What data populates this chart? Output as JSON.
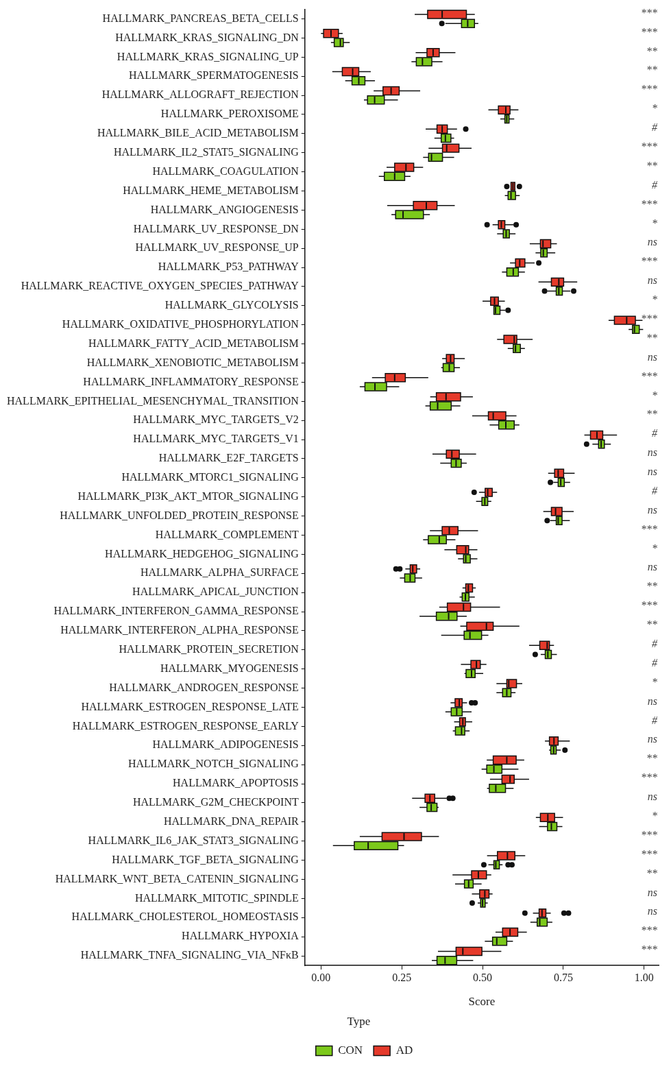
{
  "chart_data": {
    "type": "box",
    "orientation": "horizontal",
    "xlabel": "Score",
    "legend_title": "Type",
    "legend": "bottom left",
    "grid": false,
    "xlim": [
      -0.05,
      1.045
    ],
    "xticks": [
      {
        "value": 0,
        "label": "0.00"
      },
      {
        "value": 0.25,
        "label": "0.25"
      },
      {
        "value": 0.5,
        "label": "0.50"
      },
      {
        "value": 0.75,
        "label": "0.75"
      },
      {
        "value": 1,
        "label": "1.00"
      }
    ],
    "categories": [
      "HALLMARK_PANCREAS_BETA_CELLS",
      "HALLMARK_KRAS_SIGNALING_DN",
      "HALLMARK_KRAS_SIGNALING_UP",
      "HALLMARK_SPERMATOGENESIS",
      "HALLMARK_ALLOGRAFT_REJECTION",
      "HALLMARK_PEROXISOME",
      "HALLMARK_BILE_ACID_METABOLISM",
      "HALLMARK_IL2_STAT5_SIGNALING",
      "HALLMARK_COAGULATION",
      "HALLMARK_HEME_METABOLISM",
      "HALLMARK_ANGIOGENESIS",
      "HALLMARK_UV_RESPONSE_DN",
      "HALLMARK_UV_RESPONSE_UP",
      "HALLMARK_P53_PATHWAY",
      "HALLMARK_REACTIVE_OXYGEN_SPECIES_PATHWAY",
      "HALLMARK_GLYCOLYSIS",
      "HALLMARK_OXIDATIVE_PHOSPHORYLATION",
      "HALLMARK_FATTY_ACID_METABOLISM",
      "HALLMARK_XENOBIOTIC_METABOLISM",
      "HALLMARK_INFLAMMATORY_RESPONSE",
      "HALLMARK_EPITHELIAL_MESENCHYMAL_TRANSITION",
      "HALLMARK_MYC_TARGETS_V2",
      "HALLMARK_MYC_TARGETS_V1",
      "HALLMARK_E2F_TARGETS",
      "HALLMARK_MTORC1_SIGNALING",
      "HALLMARK_PI3K_AKT_MTOR_SIGNALING",
      "HALLMARK_UNFOLDED_PROTEIN_RESPONSE",
      "HALLMARK_COMPLEMENT",
      "HALLMARK_HEDGEHOG_SIGNALING",
      "HALLMARK_ALPHA_SURFACE",
      "HALLMARK_APICAL_JUNCTION",
      "HALLMARK_INTERFERON_GAMMA_RESPONSE",
      "HALLMARK_INTERFERON_ALPHA_RESPONSE",
      "HALLMARK_PROTEIN_SECRETION",
      "HALLMARK_MYOGENESIS",
      "HALLMARK_ANDROGEN_RESPONSE",
      "HALLMARK_ESTROGEN_RESPONSE_LATE",
      "HALLMARK_ESTROGEN_RESPONSE_EARLY",
      "HALLMARK_ADIPOGENESIS",
      "HALLMARK_NOTCH_SIGNALING",
      "HALLMARK_APOPTOSIS",
      "HALLMARK_G2M_CHECKPOINT",
      "HALLMARK_DNA_REPAIR",
      "HALLMARK_IL6_JAK_STAT3_SIGNALING",
      "HALLMARK_TGF_BETA_SIGNALING",
      "HALLMARK_WNT_BETA_CATENIN_SIGNALING",
      "HALLMARK_MITOTIC_SPINDLE",
      "HALLMARK_CHOLESTEROL_HOMEOSTASIS",
      "HALLMARK_HYPOXIA",
      "HALLMARK_TNFA_SIGNALING_VIA_NFκB"
    ],
    "series": [
      {
        "name": "CON",
        "color": "#7cc91b",
        "boxes": [
          {
            "low": 0.385,
            "q1": 0.435,
            "median": 0.454,
            "q3": 0.475,
            "high": 0.487,
            "outliers": [
              0.374
            ]
          },
          {
            "low": 0.031,
            "q1": 0.041,
            "median": 0.06,
            "q3": 0.069,
            "high": 0.089
          },
          {
            "low": 0.28,
            "q1": 0.295,
            "median": 0.314,
            "q3": 0.343,
            "high": 0.376
          },
          {
            "low": 0.075,
            "q1": 0.096,
            "median": 0.117,
            "q3": 0.136,
            "high": 0.167
          },
          {
            "low": 0.133,
            "q1": 0.144,
            "median": 0.166,
            "q3": 0.196,
            "high": 0.238
          },
          {
            "low": 0.555,
            "q1": 0.569,
            "median": 0.575,
            "q3": 0.582,
            "high": 0.598
          },
          {
            "low": 0.351,
            "q1": 0.372,
            "median": 0.385,
            "q3": 0.402,
            "high": 0.412
          },
          {
            "low": 0.316,
            "q1": 0.333,
            "median": 0.342,
            "q3": 0.376,
            "high": 0.412
          },
          {
            "low": 0.179,
            "q1": 0.196,
            "median": 0.228,
            "q3": 0.259,
            "high": 0.277
          },
          {
            "low": 0.569,
            "q1": 0.579,
            "median": 0.588,
            "q3": 0.602,
            "high": 0.615
          },
          {
            "low": 0.218,
            "q1": 0.231,
            "median": 0.254,
            "q3": 0.317,
            "high": 0.337
          },
          {
            "low": 0.545,
            "q1": 0.564,
            "median": 0.573,
            "q3": 0.583,
            "high": 0.602
          },
          {
            "low": 0.664,
            "q1": 0.68,
            "median": 0.688,
            "q3": 0.7,
            "high": 0.725
          },
          {
            "low": 0.56,
            "q1": 0.575,
            "median": 0.595,
            "q3": 0.611,
            "high": 0.631
          },
          {
            "low": 0.7,
            "q1": 0.728,
            "median": 0.736,
            "q3": 0.747,
            "high": 0.772,
            "outliers": [
              0.692,
              0.782
            ]
          },
          {
            "low": 0.534,
            "q1": 0.535,
            "median": 0.54,
            "q3": 0.554,
            "high": 0.571,
            "outliers": [
              0.579
            ]
          },
          {
            "low": 0.952,
            "q1": 0.964,
            "median": 0.97,
            "q3": 0.985,
            "high": 0.997
          },
          {
            "low": 0.578,
            "q1": 0.595,
            "median": 0.602,
            "q3": 0.617,
            "high": 0.631
          },
          {
            "low": 0.372,
            "q1": 0.378,
            "median": 0.397,
            "q3": 0.412,
            "high": 0.43
          },
          {
            "low": 0.12,
            "q1": 0.136,
            "median": 0.167,
            "q3": 0.203,
            "high": 0.242
          },
          {
            "low": 0.323,
            "q1": 0.338,
            "median": 0.361,
            "q3": 0.403,
            "high": 0.431
          },
          {
            "low": 0.522,
            "q1": 0.55,
            "median": 0.572,
            "q3": 0.598,
            "high": 0.614
          },
          {
            "low": 0.84,
            "q1": 0.859,
            "median": 0.867,
            "q3": 0.877,
            "high": 0.897,
            "outliers": [
              0.822
            ]
          },
          {
            "low": 0.369,
            "q1": 0.403,
            "median": 0.418,
            "q3": 0.434,
            "high": 0.451
          },
          {
            "low": 0.719,
            "q1": 0.734,
            "median": 0.742,
            "q3": 0.753,
            "high": 0.771,
            "outliers": [
              0.71
            ]
          },
          {
            "low": 0.48,
            "q1": 0.498,
            "median": 0.507,
            "q3": 0.516,
            "high": 0.527
          },
          {
            "low": 0.709,
            "q1": 0.728,
            "median": 0.734,
            "q3": 0.746,
            "high": 0.77,
            "outliers": [
              0.7
            ]
          },
          {
            "low": 0.316,
            "q1": 0.332,
            "median": 0.366,
            "q3": 0.388,
            "high": 0.416
          },
          {
            "low": 0.424,
            "q1": 0.441,
            "median": 0.448,
            "q3": 0.462,
            "high": 0.484
          },
          {
            "low": 0.244,
            "q1": 0.259,
            "median": 0.276,
            "q3": 0.291,
            "high": 0.313
          },
          {
            "low": 0.429,
            "q1": 0.437,
            "median": 0.447,
            "q3": 0.458,
            "high": 0.476
          },
          {
            "low": 0.305,
            "q1": 0.357,
            "median": 0.395,
            "q3": 0.421,
            "high": 0.451
          },
          {
            "low": 0.372,
            "q1": 0.443,
            "median": 0.461,
            "q3": 0.497,
            "high": 0.518
          },
          {
            "low": 0.68,
            "q1": 0.694,
            "median": 0.702,
            "q3": 0.713,
            "high": 0.73,
            "outliers": [
              0.663
            ]
          },
          {
            "low": 0.444,
            "q1": 0.449,
            "median": 0.466,
            "q3": 0.477,
            "high": 0.502
          },
          {
            "low": 0.543,
            "q1": 0.562,
            "median": 0.575,
            "q3": 0.588,
            "high": 0.602
          },
          {
            "low": 0.385,
            "q1": 0.403,
            "median": 0.42,
            "q3": 0.437,
            "high": 0.466
          },
          {
            "low": 0.408,
            "q1": 0.416,
            "median": 0.435,
            "q3": 0.445,
            "high": 0.46
          },
          {
            "low": 0.706,
            "q1": 0.711,
            "median": 0.72,
            "q3": 0.728,
            "high": 0.742,
            "outliers": [
              0.755
            ]
          },
          {
            "low": 0.497,
            "q1": 0.513,
            "median": 0.535,
            "q3": 0.56,
            "high": 0.611
          },
          {
            "low": 0.514,
            "q1": 0.521,
            "median": 0.541,
            "q3": 0.571,
            "high": 0.596
          },
          {
            "low": 0.305,
            "q1": 0.328,
            "median": 0.341,
            "q3": 0.359,
            "high": 0.364
          },
          {
            "low": 0.675,
            "q1": 0.701,
            "median": 0.713,
            "q3": 0.73,
            "high": 0.747
          },
          {
            "low": 0.037,
            "q1": 0.103,
            "median": 0.146,
            "q3": 0.238,
            "high": 0.257
          },
          {
            "low": 0.518,
            "q1": 0.535,
            "median": 0.541,
            "q3": 0.552,
            "high": 0.562,
            "outliers": [
              0.504,
              0.579,
              0.591
            ]
          },
          {
            "low": 0.415,
            "q1": 0.444,
            "median": 0.457,
            "q3": 0.471,
            "high": 0.497
          },
          {
            "low": 0.485,
            "q1": 0.494,
            "median": 0.5,
            "q3": 0.508,
            "high": 0.516,
            "outliers": [
              0.468
            ]
          },
          {
            "low": 0.648,
            "q1": 0.669,
            "median": 0.677,
            "q3": 0.7,
            "high": 0.716
          },
          {
            "low": 0.507,
            "q1": 0.531,
            "median": 0.544,
            "q3": 0.575,
            "high": 0.594
          },
          {
            "low": 0.343,
            "q1": 0.359,
            "median": 0.384,
            "q3": 0.42,
            "high": 0.471
          }
        ]
      },
      {
        "name": "AD",
        "color": "#e53a2b",
        "boxes": [
          {
            "low": 0.29,
            "q1": 0.33,
            "median": 0.375,
            "q3": 0.45,
            "high": 0.476
          },
          {
            "low": 0.0,
            "q1": 0.008,
            "median": 0.031,
            "q3": 0.054,
            "high": 0.067
          },
          {
            "low": 0.293,
            "q1": 0.328,
            "median": 0.347,
            "q3": 0.366,
            "high": 0.416
          },
          {
            "low": 0.035,
            "q1": 0.066,
            "median": 0.098,
            "q3": 0.117,
            "high": 0.154
          },
          {
            "low": 0.163,
            "q1": 0.192,
            "median": 0.217,
            "q3": 0.242,
            "high": 0.307
          },
          {
            "low": 0.518,
            "q1": 0.549,
            "median": 0.572,
            "q3": 0.585,
            "high": 0.611
          },
          {
            "low": 0.324,
            "q1": 0.359,
            "median": 0.375,
            "q3": 0.391,
            "high": 0.421,
            "outliers": [
              0.448
            ]
          },
          {
            "low": 0.333,
            "q1": 0.376,
            "median": 0.389,
            "q3": 0.427,
            "high": 0.466
          },
          {
            "low": 0.203,
            "q1": 0.228,
            "median": 0.263,
            "q3": 0.287,
            "high": 0.316
          },
          {
            "low": 0.588,
            "q1": 0.588,
            "median": 0.594,
            "q3": 0.6,
            "high": 0.6,
            "outliers": [
              0.575,
              0.614
            ]
          },
          {
            "low": 0.205,
            "q1": 0.286,
            "median": 0.326,
            "q3": 0.359,
            "high": 0.414
          },
          {
            "low": 0.531,
            "q1": 0.549,
            "median": 0.558,
            "q3": 0.569,
            "high": 0.596,
            "outliers": [
              0.514,
              0.604
            ]
          },
          {
            "low": 0.646,
            "q1": 0.679,
            "median": 0.687,
            "q3": 0.711,
            "high": 0.73
          },
          {
            "low": 0.585,
            "q1": 0.602,
            "median": 0.615,
            "q3": 0.631,
            "high": 0.661,
            "outliers": [
              0.674
            ]
          },
          {
            "low": 0.673,
            "q1": 0.713,
            "median": 0.736,
            "q3": 0.751,
            "high": 0.793
          },
          {
            "low": 0.5,
            "q1": 0.525,
            "median": 0.537,
            "q3": 0.549,
            "high": 0.569
          },
          {
            "low": 0.89,
            "q1": 0.908,
            "median": 0.946,
            "q3": 0.973,
            "high": 0.995
          },
          {
            "low": 0.545,
            "q1": 0.566,
            "median": 0.598,
            "q3": 0.606,
            "high": 0.655
          },
          {
            "low": 0.375,
            "q1": 0.388,
            "median": 0.401,
            "q3": 0.412,
            "high": 0.445
          },
          {
            "low": 0.158,
            "q1": 0.199,
            "median": 0.228,
            "q3": 0.261,
            "high": 0.332
          },
          {
            "low": 0.338,
            "q1": 0.357,
            "median": 0.387,
            "q3": 0.432,
            "high": 0.47
          },
          {
            "low": 0.468,
            "q1": 0.518,
            "median": 0.533,
            "q3": 0.572,
            "high": 0.605
          },
          {
            "low": 0.815,
            "q1": 0.834,
            "median": 0.854,
            "q3": 0.872,
            "high": 0.916
          },
          {
            "low": 0.345,
            "q1": 0.388,
            "median": 0.405,
            "q3": 0.428,
            "high": 0.48
          },
          {
            "low": 0.703,
            "q1": 0.723,
            "median": 0.734,
            "q3": 0.751,
            "high": 0.785
          },
          {
            "low": 0.489,
            "q1": 0.508,
            "median": 0.516,
            "q3": 0.53,
            "high": 0.545,
            "outliers": [
              0.474
            ]
          },
          {
            "low": 0.688,
            "q1": 0.713,
            "median": 0.726,
            "q3": 0.746,
            "high": 0.782
          },
          {
            "low": 0.337,
            "q1": 0.375,
            "median": 0.397,
            "q3": 0.424,
            "high": 0.486
          },
          {
            "low": 0.382,
            "q1": 0.42,
            "median": 0.448,
            "q3": 0.457,
            "high": 0.484
          },
          {
            "low": 0.261,
            "q1": 0.276,
            "median": 0.284,
            "q3": 0.296,
            "high": 0.307,
            "outliers": [
              0.232,
              0.244
            ]
          },
          {
            "low": 0.438,
            "q1": 0.448,
            "median": 0.456,
            "q3": 0.469,
            "high": 0.479
          },
          {
            "low": 0.366,
            "q1": 0.391,
            "median": 0.441,
            "q3": 0.463,
            "high": 0.554
          },
          {
            "low": 0.431,
            "q1": 0.451,
            "median": 0.512,
            "q3": 0.533,
            "high": 0.614
          },
          {
            "low": 0.644,
            "q1": 0.677,
            "median": 0.7,
            "q3": 0.707,
            "high": 0.721
          },
          {
            "low": 0.433,
            "q1": 0.464,
            "median": 0.481,
            "q3": 0.493,
            "high": 0.512
          },
          {
            "low": 0.543,
            "q1": 0.575,
            "median": 0.581,
            "q3": 0.605,
            "high": 0.623
          },
          {
            "low": 0.401,
            "q1": 0.415,
            "median": 0.428,
            "q3": 0.437,
            "high": 0.452,
            "outliers": [
              0.466,
              0.477
            ]
          },
          {
            "low": 0.412,
            "q1": 0.429,
            "median": 0.439,
            "q3": 0.447,
            "high": 0.468
          },
          {
            "low": 0.693,
            "q1": 0.707,
            "median": 0.721,
            "q3": 0.734,
            "high": 0.77
          },
          {
            "low": 0.513,
            "q1": 0.533,
            "median": 0.575,
            "q3": 0.604,
            "high": 0.629
          },
          {
            "low": 0.523,
            "q1": 0.56,
            "median": 0.585,
            "q3": 0.598,
            "high": 0.644
          },
          {
            "low": 0.282,
            "q1": 0.322,
            "median": 0.337,
            "q3": 0.352,
            "high": 0.389,
            "outliers": [
              0.397,
              0.408
            ]
          },
          {
            "low": 0.665,
            "q1": 0.679,
            "median": 0.702,
            "q3": 0.723,
            "high": 0.749
          },
          {
            "low": 0.12,
            "q1": 0.189,
            "median": 0.257,
            "q3": 0.311,
            "high": 0.365
          },
          {
            "low": 0.514,
            "q1": 0.546,
            "median": 0.577,
            "q3": 0.6,
            "high": 0.632
          },
          {
            "low": 0.407,
            "q1": 0.466,
            "median": 0.487,
            "q3": 0.512,
            "high": 0.527
          },
          {
            "low": 0.467,
            "q1": 0.491,
            "median": 0.507,
            "q3": 0.52,
            "high": 0.531
          },
          {
            "low": 0.656,
            "q1": 0.675,
            "median": 0.684,
            "q3": 0.696,
            "high": 0.711,
            "outliers": [
              0.631,
              0.752,
              0.766
            ]
          },
          {
            "low": 0.54,
            "q1": 0.562,
            "median": 0.585,
            "q3": 0.609,
            "high": 0.637
          },
          {
            "low": 0.362,
            "q1": 0.418,
            "median": 0.439,
            "q3": 0.498,
            "high": 0.558
          }
        ]
      }
    ],
    "annotations": [
      "***",
      "***",
      "**",
      "**",
      "***",
      "*",
      "#",
      "***",
      "**",
      "#",
      "***",
      "*",
      "ns",
      "***",
      "ns",
      "*",
      "***",
      "**",
      "ns",
      "***",
      "*",
      "**",
      "#",
      "ns",
      "ns",
      "#",
      "ns",
      "***",
      "*",
      "ns",
      "**",
      "***",
      "**",
      "#",
      "#",
      "*",
      "ns",
      "#",
      "ns",
      "**",
      "***",
      "ns",
      "*",
      "***",
      "***",
      "**",
      "ns",
      "ns",
      "***",
      "***"
    ]
  }
}
